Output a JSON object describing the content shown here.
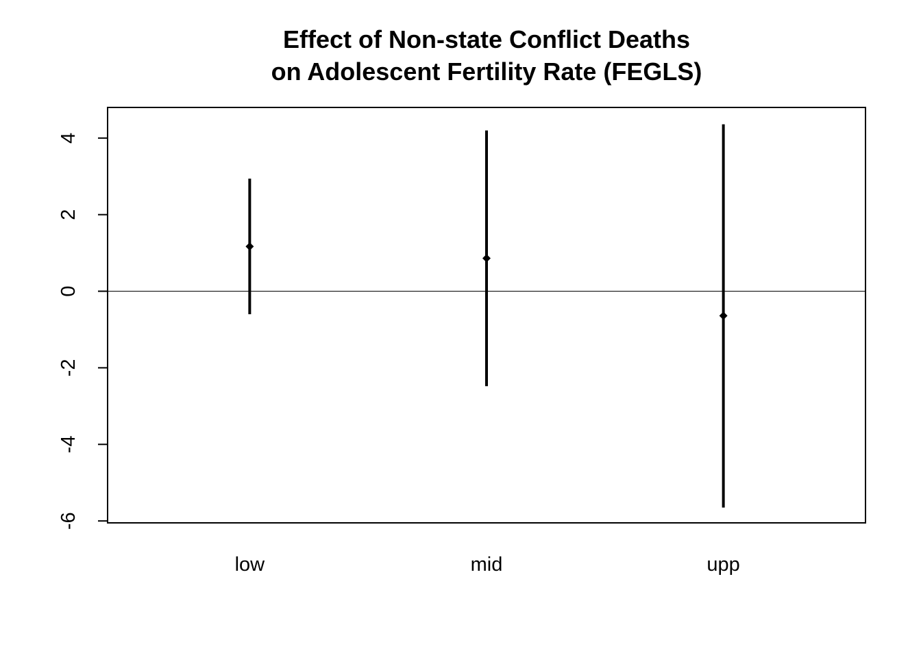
{
  "chart_data": {
    "type": "errorbar",
    "title": [
      "Effect of Non-state Conflict Deaths",
      "on Adolescent Fertility Rate (FEGLS)"
    ],
    "xlabel": "",
    "ylabel": "",
    "categories": [
      "low",
      "mid",
      "upp"
    ],
    "estimates": [
      1.17,
      0.86,
      -0.64
    ],
    "lower": [
      -0.6,
      -2.48,
      -5.65
    ],
    "upper": [
      2.94,
      4.2,
      4.36
    ],
    "ylim": [
      -6.05,
      4.8
    ],
    "yticks": [
      -6,
      -4,
      -2,
      0,
      2,
      4
    ],
    "ytick_labels": [
      "-6",
      "-4",
      "-2",
      "0",
      "2",
      "4"
    ],
    "reference_line": 0,
    "grid": false,
    "legend": "none",
    "colors": {
      "marks": "#000000",
      "frame": "#000000",
      "background": "#ffffff"
    }
  }
}
